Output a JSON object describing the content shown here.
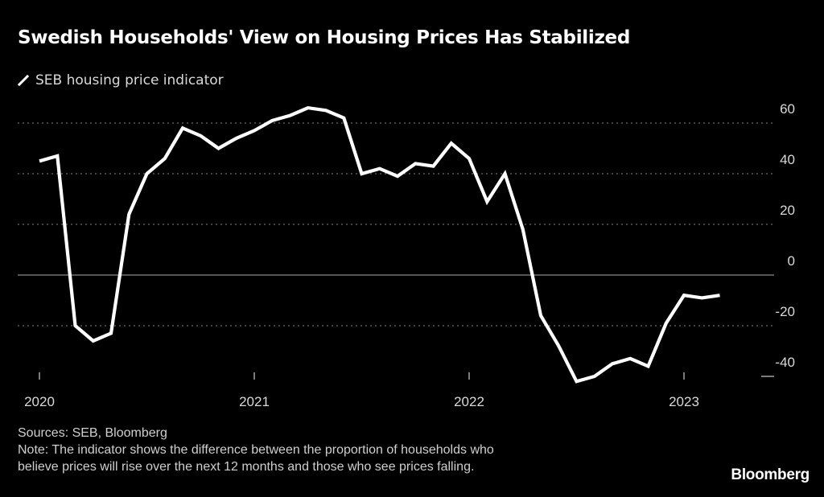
{
  "chart_data": {
    "type": "line",
    "title": "Swedish Households' View on Housing Prices Has Stabilized",
    "xlabel": "",
    "ylabel": "",
    "x_ticks": [
      "2020",
      "2021",
      "2022",
      "2023"
    ],
    "y_ticks": [
      60,
      40,
      20,
      0,
      -20,
      -40
    ],
    "ylim": [
      -40,
      60
    ],
    "grid": true,
    "legend_position": "top-left",
    "series": [
      {
        "name": "SEB housing price indicator",
        "color": "#ffffff",
        "x": [
          "2020-01",
          "2020-02",
          "2020-03",
          "2020-04",
          "2020-05",
          "2020-06",
          "2020-07",
          "2020-08",
          "2020-09",
          "2020-10",
          "2020-11",
          "2020-12",
          "2021-01",
          "2021-02",
          "2021-03",
          "2021-04",
          "2021-05",
          "2021-06",
          "2021-07",
          "2021-08",
          "2021-09",
          "2021-10",
          "2021-11",
          "2021-12",
          "2022-01",
          "2022-02",
          "2022-03",
          "2022-04",
          "2022-05",
          "2022-06",
          "2022-07",
          "2022-08",
          "2022-09",
          "2022-10",
          "2022-11",
          "2022-12",
          "2023-01",
          "2023-02",
          "2023-03"
        ],
        "values": [
          45,
          47,
          -20,
          -26,
          -23,
          24,
          40,
          46,
          58,
          55,
          50,
          54,
          57,
          61,
          63,
          66,
          65,
          62,
          40,
          42,
          39,
          44,
          43,
          52,
          46,
          29,
          40,
          18,
          -16,
          -28,
          -42,
          -40,
          -35,
          -33,
          -36,
          -19,
          -8,
          -9,
          -8
        ]
      }
    ]
  },
  "legend": {
    "label": "SEB housing price indicator"
  },
  "footer": {
    "sources": "Sources: SEB, Bloomberg",
    "note_line1": "Note: The indicator shows the difference between the proportion of households who",
    "note_line2": "believe prices will rise over the next 12 months and those who see prices falling."
  },
  "brand": "Bloomberg",
  "colors": {
    "background": "#000000",
    "line": "#ffffff",
    "grid": "#666666",
    "text": "#d9d9d9"
  }
}
